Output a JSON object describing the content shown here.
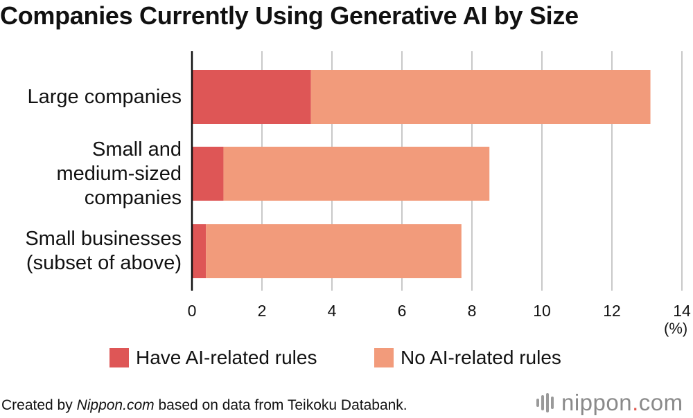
{
  "title": "Companies Currently Using Generative AI by Size",
  "unit_label": "(%)",
  "source": {
    "prefix": "Created by ",
    "site": "Nippon.com",
    "suffix": " based on data from Teikoku Databank."
  },
  "logo": {
    "word": "nippon",
    "dot": ".",
    "tld": "com"
  },
  "colors": {
    "have_rules": "#de5656",
    "no_rules": "#f29b7b",
    "grid": "#c8c8c8",
    "axis": "#111111"
  },
  "chart_data": {
    "type": "bar",
    "orientation": "horizontal",
    "stacked": true,
    "categories": [
      "Large companies",
      "Small and\nmedium-sized\ncompanies",
      "Small businesses\n(subset of above)"
    ],
    "series": [
      {
        "name": "Have AI-related rules",
        "values": [
          3.4,
          0.9,
          0.4
        ]
      },
      {
        "name": "No AI-related rules",
        "values": [
          9.7,
          7.6,
          7.3
        ]
      }
    ],
    "xlim": [
      0,
      14
    ],
    "xticks": [
      0,
      2,
      4,
      6,
      8,
      10,
      12,
      14
    ],
    "grid": true,
    "legend_position": "bottom"
  }
}
